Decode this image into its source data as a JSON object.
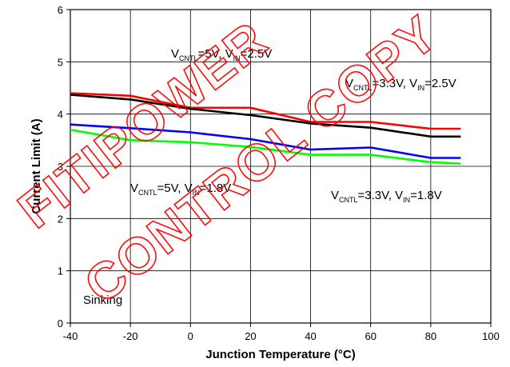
{
  "chart_data": {
    "type": "line",
    "xlabel": "Junction Temperature (°C)",
    "ylabel": "Current Limit (A)",
    "xlim": [
      -40,
      100
    ],
    "ylim": [
      0,
      6
    ],
    "x_ticks": [
      "-40",
      "-20",
      "0",
      "20",
      "40",
      "60",
      "80",
      "100"
    ],
    "y_ticks": [
      "0",
      "1",
      "2",
      "3",
      "4",
      "5",
      "6"
    ],
    "grid": true,
    "x": [
      -40,
      -20,
      0,
      20,
      40,
      60,
      80,
      90
    ],
    "series": [
      {
        "name": "V_CNTL=5V, V_IN=2.5V",
        "color": "#ff0000",
        "values": [
          4.4,
          4.35,
          4.12,
          4.12,
          3.85,
          3.85,
          3.72,
          3.72
        ]
      },
      {
        "name": "V_CNTL=3.3V, V_IN=2.5V",
        "color": "#000000",
        "values": [
          4.37,
          4.28,
          4.1,
          3.98,
          3.82,
          3.74,
          3.57,
          3.57
        ]
      },
      {
        "name": "V_CNTL=5V, V_IN=1.8V",
        "color": "#0000ff",
        "values": [
          3.8,
          3.73,
          3.65,
          3.52,
          3.32,
          3.36,
          3.16,
          3.16
        ]
      },
      {
        "name": "V_CNTL=3.3V, V_IN=1.8V",
        "color": "#00ff00",
        "values": [
          3.7,
          3.5,
          3.46,
          3.37,
          3.22,
          3.22,
          3.08,
          3.05
        ]
      }
    ],
    "annotations": [
      {
        "main1": "V",
        "sub1": "CNTL",
        "main2": "=5V, V",
        "sub2": "IN",
        "main3": "=2.5V"
      },
      {
        "main1": "V",
        "sub1": "CNTL",
        "main2": "=3.3V, V",
        "sub2": "IN",
        "main3": "=2.5V"
      },
      {
        "main1": "V",
        "sub1": "CNTL",
        "main2": "=5V, V",
        "sub2": "IN",
        "main3": "=1.8V"
      },
      {
        "main1": "V",
        "sub1": "CNTL",
        "main2": "=3.3V, V",
        "sub2": "IN",
        "main3": "=1.8V"
      }
    ],
    "mode_label": "Sinking"
  },
  "watermark": {
    "line1": "FITIPOWER",
    "line2": "CONTROL COPY",
    "color": "#ff0000"
  }
}
